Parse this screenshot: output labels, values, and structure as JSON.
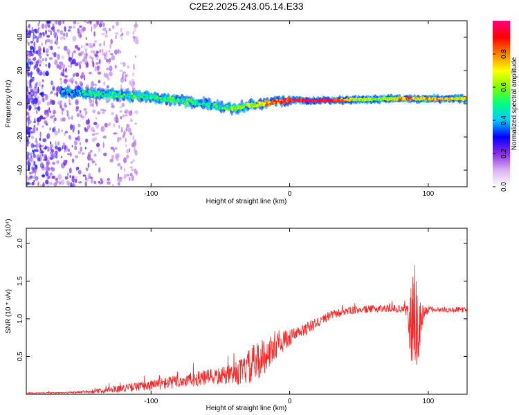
{
  "title": "C2E2.2025.243.05.14.E33",
  "chart_data": [
    {
      "type": "heatmap",
      "title": "C2E2.2025.243.05.14.E33",
      "xlabel": "Height of straight line (km)",
      "ylabel": "Frequency (Hz)",
      "xlim": [
        -190,
        128
      ],
      "ylim": [
        -50,
        50
      ],
      "xticks": [
        -100,
        0,
        100
      ],
      "xtick_labels": [
        "-100",
        "0",
        "100"
      ],
      "yticks": [
        -40,
        -20,
        0,
        20,
        40
      ],
      "ytick_labels": [
        "-40",
        "-20",
        "0",
        "20",
        "40"
      ],
      "colorbar": {
        "label": "Normalized spectral amplitude",
        "range": [
          0,
          1
        ],
        "ticks": [
          0.0,
          0.2,
          0.4,
          0.6,
          0.8
        ],
        "tick_labels": [
          "0.0",
          "0.2",
          "0.4",
          "0.6",
          "0.8"
        ],
        "colors": [
          "#ffffff",
          "#d9b3f2",
          "#8a2be2",
          "#0000ff",
          "#00c8ff",
          "#00ff80",
          "#80ff00",
          "#ffff00",
          "#ff8000",
          "#ff0000",
          "#ff0080"
        ]
      },
      "ridge": {
        "x": [
          -165,
          -140,
          -120,
          -100,
          -80,
          -60,
          -50,
          -40,
          -30,
          -20,
          -10,
          0,
          10,
          30,
          50,
          70,
          85,
          90,
          100,
          128
        ],
        "y": [
          7,
          6,
          5,
          4,
          2,
          0,
          -2,
          -3,
          -1,
          0,
          1,
          2,
          2,
          2,
          2.5,
          3,
          3,
          3,
          3,
          3
        ],
        "amplitude": [
          0.35,
          0.45,
          0.5,
          0.5,
          0.5,
          0.45,
          0.5,
          0.55,
          0.6,
          0.7,
          0.8,
          0.9,
          0.95,
          0.95,
          0.6,
          0.6,
          0.85,
          0.7,
          0.75,
          0.7
        ]
      }
    },
    {
      "type": "line",
      "xlabel": "Height of straight line (km)",
      "ylabel": "SNR (10 * v/v)",
      "scale_label": "(x10⁴)",
      "color": "#ff2222",
      "xlim": [
        -190,
        128
      ],
      "ylim": [
        0,
        22000
      ],
      "xticks": [
        -100,
        0,
        100
      ],
      "xtick_labels": [
        "-100",
        "0",
        "100"
      ],
      "yticks": [
        5000,
        10000,
        15000,
        20000
      ],
      "ytick_labels": [
        "0.5",
        "1.0",
        "1.5",
        "2.0"
      ],
      "envelope": {
        "x": [
          -190,
          -160,
          -140,
          -120,
          -100,
          -80,
          -60,
          -45,
          -35,
          -25,
          -20,
          -15,
          -10,
          -5,
          0,
          10,
          20,
          30,
          40,
          50,
          60,
          70,
          80,
          85,
          87,
          90,
          93,
          97,
          100,
          110,
          128
        ],
        "mean": [
          150,
          200,
          400,
          800,
          1200,
          1700,
          2200,
          2500,
          3000,
          4000,
          4800,
          5500,
          6500,
          7000,
          7500,
          8500,
          9500,
          10500,
          11000,
          11200,
          11300,
          11400,
          11300,
          11200,
          9000,
          10000,
          9000,
          10800,
          11200,
          11200,
          11200
        ],
        "spread": [
          100,
          150,
          400,
          700,
          1000,
          1300,
          1500,
          1700,
          2500,
          4000,
          3500,
          3000,
          2500,
          2000,
          1500,
          1200,
          1000,
          800,
          700,
          700,
          700,
          700,
          700,
          1200,
          9000,
          11000,
          8000,
          1500,
          600,
          500,
          500
        ]
      }
    }
  ]
}
